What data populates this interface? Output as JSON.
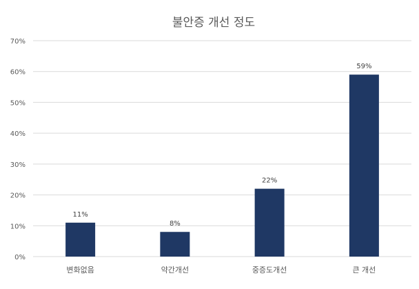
{
  "chart_data": {
    "type": "bar",
    "title": "불안증 개선 정도",
    "categories": [
      "변화없음",
      "약간개선",
      "중증도개선",
      "큰 개선"
    ],
    "values": [
      11,
      8,
      22,
      59
    ],
    "data_labels": [
      "11%",
      "8%",
      "22%",
      "59%"
    ],
    "xlabel": "",
    "ylabel": "",
    "ylim": [
      0,
      70
    ],
    "yticks": [
      0,
      10,
      20,
      30,
      40,
      50,
      60,
      70
    ],
    "ytick_labels": [
      "0%",
      "10%",
      "20%",
      "30%",
      "40%",
      "50%",
      "60%",
      "70%"
    ],
    "grid": true,
    "legend": "none",
    "colors": {
      "bar": "#1f3864",
      "grid": "#d9d9d9",
      "text": "#595959"
    }
  }
}
